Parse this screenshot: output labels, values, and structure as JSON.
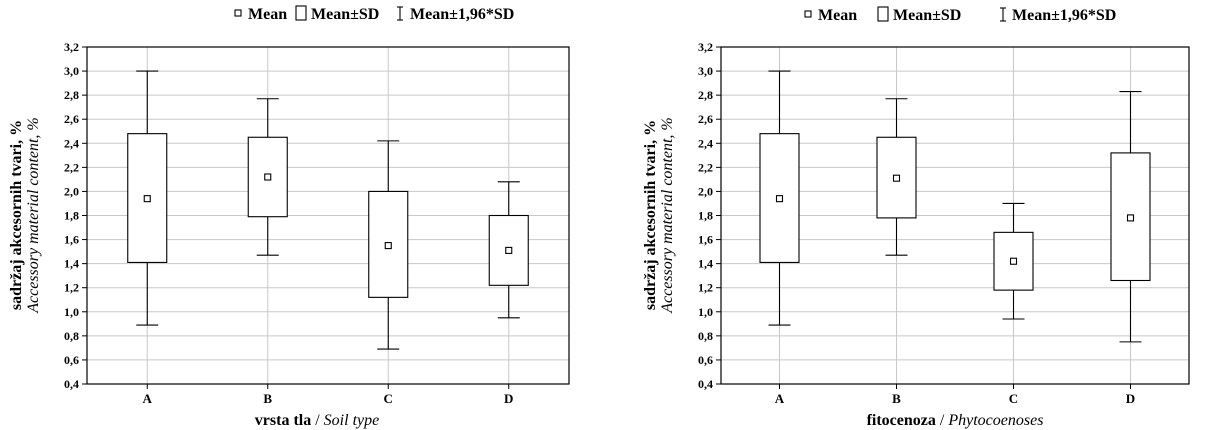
{
  "legend": {
    "mean": "Mean",
    "mean_sd": "Mean±SD",
    "mean_196sd": "Mean±1,96*SD"
  },
  "chart_data": [
    {
      "type": "boxplot",
      "ylabel_main": "sadržaj akcesornih tvari, %",
      "ylabel_sub": "Accessory material content, %",
      "xlabel_main": "vrsta tla",
      "xlabel_sep": " / ",
      "xlabel_sub": "Soil type",
      "ylim": [
        0.4,
        3.2
      ],
      "yticks": [
        "0,4",
        "0,6",
        "0,8",
        "1,0",
        "1,2",
        "1,4",
        "1,6",
        "1,8",
        "2,0",
        "2,2",
        "2,4",
        "2,6",
        "2,8",
        "3,0",
        "3,2"
      ],
      "grid": true,
      "categories": [
        "A",
        "B",
        "C",
        "D"
      ],
      "series": [
        {
          "mean": 1.94,
          "sd_low": 1.41,
          "sd_high": 2.48,
          "whisker_low": 0.89,
          "whisker_high": 3.0
        },
        {
          "mean": 2.12,
          "sd_low": 1.79,
          "sd_high": 2.45,
          "whisker_low": 1.47,
          "whisker_high": 2.77
        },
        {
          "mean": 1.55,
          "sd_low": 1.12,
          "sd_high": 2.0,
          "whisker_low": 0.69,
          "whisker_high": 2.42
        },
        {
          "mean": 1.51,
          "sd_low": 1.22,
          "sd_high": 1.8,
          "whisker_low": 0.95,
          "whisker_high": 2.08
        }
      ]
    },
    {
      "type": "boxplot",
      "ylabel_main": "sadržaj akcesornih tvari, %",
      "ylabel_sub": "Accessory material content, %",
      "xlabel_main": "fitocenoza",
      "xlabel_sep": " / ",
      "xlabel_sub": "Phytocoenoses",
      "ylim": [
        0.4,
        3.2
      ],
      "yticks": [
        "0,4",
        "0,6",
        "0,8",
        "1,0",
        "1,2",
        "1,4",
        "1,6",
        "1,8",
        "2,0",
        "2,2",
        "2,4",
        "2,6",
        "2,8",
        "3,0",
        "3,2"
      ],
      "grid": true,
      "categories": [
        "A",
        "B",
        "C",
        "D"
      ],
      "series": [
        {
          "mean": 1.94,
          "sd_low": 1.41,
          "sd_high": 2.48,
          "whisker_low": 0.89,
          "whisker_high": 3.0
        },
        {
          "mean": 2.11,
          "sd_low": 1.78,
          "sd_high": 2.45,
          "whisker_low": 1.47,
          "whisker_high": 2.77
        },
        {
          "mean": 1.42,
          "sd_low": 1.18,
          "sd_high": 1.66,
          "whisker_low": 0.94,
          "whisker_high": 1.9
        },
        {
          "mean": 1.78,
          "sd_low": 1.26,
          "sd_high": 2.32,
          "whisker_low": 0.75,
          "whisker_high": 2.83
        }
      ]
    }
  ]
}
